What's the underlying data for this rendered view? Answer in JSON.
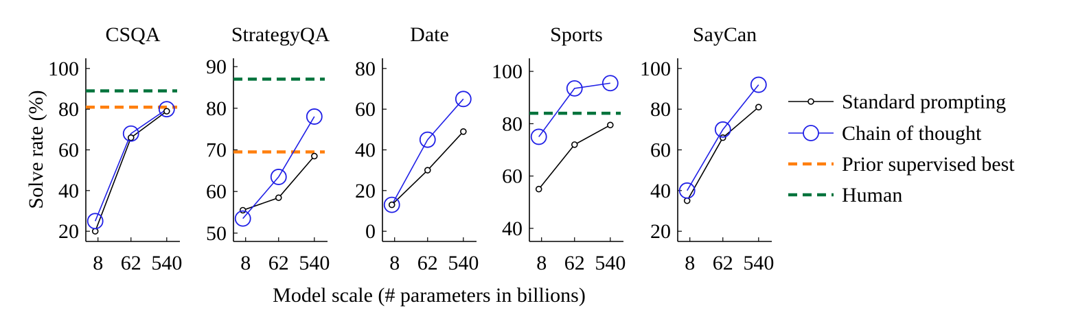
{
  "chart_data": {
    "type": "line",
    "ylabel": "Solve rate (%)",
    "xlabel": "Model scale (# parameters in billions)",
    "categories": [
      "8",
      "62",
      "540"
    ],
    "legend": {
      "placement": "right",
      "entries": [
        {
          "key": "standard",
          "label": "Standard prompting"
        },
        {
          "key": "cot",
          "label": "Chain of thought"
        },
        {
          "key": "prior",
          "label": "Prior supervised best"
        },
        {
          "key": "human",
          "label": "Human"
        }
      ]
    },
    "colors": {
      "standard": "#000000",
      "cot": "#1f1fe6",
      "prior": "#ff7f0e",
      "human": "#00733c",
      "axis": "#000000"
    },
    "panels": [
      {
        "title": "CSQA",
        "ylim": [
          15,
          105
        ],
        "yticks": [
          20,
          40,
          60,
          80,
          100
        ],
        "series": {
          "standard": [
            20,
            66,
            79
          ],
          "cot": [
            25,
            68,
            80
          ]
        },
        "prior": 81,
        "human": 89
      },
      {
        "title": "StrategyQA",
        "ylim": [
          48,
          92
        ],
        "yticks": [
          50,
          60,
          70,
          80,
          90
        ],
        "series": {
          "standard": [
            55.5,
            58.5,
            68.5
          ],
          "cot": [
            53.5,
            63.5,
            78
          ]
        },
        "prior": 69.5,
        "human": 87
      },
      {
        "title": "Date",
        "ylim": [
          -5,
          85
        ],
        "yticks": [
          0,
          20,
          40,
          60,
          80
        ],
        "series": {
          "standard": [
            13,
            30,
            49
          ],
          "cot": [
            13,
            45,
            65
          ]
        },
        "prior": null,
        "human": null
      },
      {
        "title": "Sports",
        "ylim": [
          35,
          105
        ],
        "yticks": [
          40,
          60,
          80,
          100
        ],
        "series": {
          "standard": [
            55,
            72,
            79.5
          ],
          "cot": [
            75,
            93.5,
            95.5
          ]
        },
        "prior": null,
        "human": 84
      },
      {
        "title": "SayCan",
        "ylim": [
          15,
          105
        ],
        "yticks": [
          20,
          40,
          60,
          80,
          100
        ],
        "series": {
          "standard": [
            35,
            66,
            81
          ],
          "cot": [
            40,
            70,
            92
          ]
        },
        "prior": null,
        "human": null
      }
    ]
  }
}
